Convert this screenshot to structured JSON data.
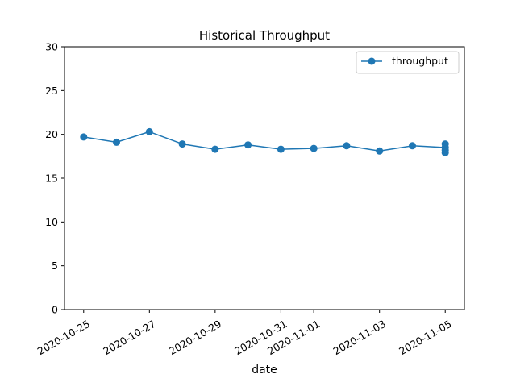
{
  "chart_data": {
    "type": "line",
    "title": "Historical Throughput",
    "xlabel": "date",
    "ylabel": "",
    "ylim": [
      0,
      30
    ],
    "yticks": [
      0,
      5,
      10,
      15,
      20,
      25,
      30
    ],
    "xlim": [
      "2020-10-24T10:00",
      "2020-11-05T14:00"
    ],
    "xticks": [
      "2020-10-25",
      "2020-10-27",
      "2020-10-29",
      "2020-10-31",
      "2020-11-01",
      "2020-11-03",
      "2020-11-05"
    ],
    "grid": false,
    "legend_position": "top-right",
    "series": [
      {
        "name": "throughput",
        "color": "#1f77b4",
        "marker": "circle",
        "points": [
          {
            "x": "2020-10-25",
            "y": 19.7
          },
          {
            "x": "2020-10-26",
            "y": 19.1
          },
          {
            "x": "2020-10-27",
            "y": 20.3
          },
          {
            "x": "2020-10-28",
            "y": 18.9
          },
          {
            "x": "2020-10-29",
            "y": 18.3
          },
          {
            "x": "2020-10-30",
            "y": 18.8
          },
          {
            "x": "2020-10-31",
            "y": 18.3
          },
          {
            "x": "2020-11-01",
            "y": 18.4
          },
          {
            "x": "2020-11-02",
            "y": 18.7
          },
          {
            "x": "2020-11-03",
            "y": 18.1
          },
          {
            "x": "2020-11-04",
            "y": 18.7
          },
          {
            "x": "2020-11-05",
            "y": 18.5
          },
          {
            "x": "2020-11-05",
            "y": 18.9
          },
          {
            "x": "2020-11-05",
            "y": 18.2
          },
          {
            "x": "2020-11-05",
            "y": 17.9
          }
        ]
      }
    ]
  }
}
